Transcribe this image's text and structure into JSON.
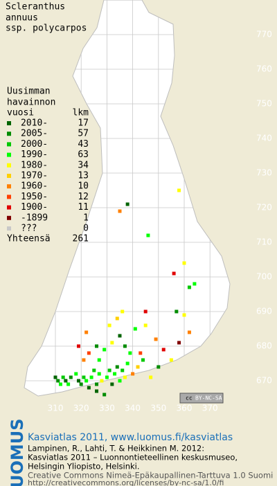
{
  "title": [
    "Scleranthus",
    "annuus",
    "ssp. polycarpos"
  ],
  "legend": {
    "heading": [
      "Uusimman",
      "havainnon"
    ],
    "col_period": "vuosi",
    "col_count": "lkm",
    "rows": [
      {
        "label": "2010-",
        "count": 17,
        "color": "#006400"
      },
      {
        "label": "2005-",
        "count": 57,
        "color": "#008c00"
      },
      {
        "label": "2000-",
        "count": 43,
        "color": "#00c800"
      },
      {
        "label": "1990-",
        "count": 63,
        "color": "#00ff00"
      },
      {
        "label": "1980-",
        "count": 34,
        "color": "#ffff00"
      },
      {
        "label": "1970-",
        "count": 13,
        "color": "#ffd000"
      },
      {
        "label": "1960-",
        "count": 10,
        "color": "#ff8000"
      },
      {
        "label": "1950-",
        "count": 12,
        "color": "#ff4000"
      },
      {
        "label": "1900-",
        "count": 11,
        "color": "#e00000"
      },
      {
        "label": "-1899",
        "count": 1,
        "color": "#800000"
      },
      {
        "label": "???",
        "count": 0,
        "color": "#c8c8c8"
      }
    ],
    "total_label": "Yhteensä",
    "total": 261
  },
  "grid": {
    "x_labels": [
      310,
      320,
      330,
      340,
      350,
      360,
      370
    ],
    "y_labels": [
      670,
      680,
      690,
      700,
      710,
      720,
      730,
      740,
      750,
      760,
      770
    ]
  },
  "observations": [
    [
      310,
      671,
      0
    ],
    [
      311,
      670,
      1
    ],
    [
      312,
      669,
      3
    ],
    [
      313,
      671,
      2
    ],
    [
      314,
      670,
      0
    ],
    [
      315,
      669,
      3
    ],
    [
      316,
      671,
      1
    ],
    [
      318,
      672,
      3
    ],
    [
      319,
      670,
      0
    ],
    [
      320,
      669,
      1
    ],
    [
      321,
      671,
      2
    ],
    [
      322,
      670,
      3
    ],
    [
      323,
      668,
      0
    ],
    [
      324,
      671,
      3
    ],
    [
      325,
      673,
      2
    ],
    [
      326,
      669,
      1
    ],
    [
      327,
      672,
      3
    ],
    [
      328,
      670,
      4
    ],
    [
      330,
      671,
      3
    ],
    [
      331,
      673,
      2
    ],
    [
      332,
      669,
      0
    ],
    [
      333,
      672,
      3
    ],
    [
      334,
      674,
      1
    ],
    [
      335,
      670,
      3
    ],
    [
      336,
      673,
      2
    ],
    [
      337,
      671,
      4
    ],
    [
      338,
      675,
      3
    ],
    [
      340,
      672,
      6
    ],
    [
      342,
      674,
      5
    ],
    [
      344,
      676,
      2
    ],
    [
      326,
      667,
      0
    ],
    [
      329,
      666,
      1
    ],
    [
      321,
      676,
      6
    ],
    [
      323,
      678,
      7
    ],
    [
      326,
      680,
      1
    ],
    [
      329,
      679,
      3
    ],
    [
      332,
      681,
      4
    ],
    [
      335,
      683,
      0
    ],
    [
      337,
      680,
      1
    ],
    [
      339,
      678,
      3
    ],
    [
      331,
      686,
      4
    ],
    [
      334,
      688,
      5
    ],
    [
      336,
      690,
      4
    ],
    [
      322,
      684,
      6
    ],
    [
      319,
      680,
      8
    ],
    [
      341,
      685,
      3
    ],
    [
      345,
      686,
      4
    ],
    [
      349,
      682,
      6
    ],
    [
      352,
      679,
      8
    ],
    [
      355,
      676,
      4
    ],
    [
      358,
      681,
      9
    ],
    [
      362,
      684,
      6
    ],
    [
      360,
      689,
      4
    ],
    [
      357,
      690,
      1
    ],
    [
      364,
      698,
      3
    ],
    [
      362,
      697,
      2
    ],
    [
      356,
      701,
      8
    ],
    [
      360,
      704,
      4
    ],
    [
      346,
      712,
      3
    ],
    [
      338,
      721,
      0
    ],
    [
      335,
      719,
      6
    ],
    [
      358,
      725,
      4
    ],
    [
      345,
      690,
      8
    ],
    [
      350,
      674,
      1
    ],
    [
      347,
      671,
      4
    ],
    [
      343,
      678,
      7
    ],
    [
      327,
      676,
      3
    ]
  ],
  "badge": {
    "cc": "cc",
    "text": "BY-NC-SA"
  },
  "footer": {
    "logo": "LUOMUS",
    "link": "Kasviatlas 2011, www.luomus.fi/kasviatlas",
    "citation": [
      "Lampinen, R., Lahti, T. & Heikkinen M. 2012:",
      "Kasviatlas 2011 – Luonnontieteellinen keskusmuseo,",
      "Helsingin Yliopisto, Helsinki."
    ],
    "license": [
      "Creative Commons Nimeä-Epäkaupallinen-Tarttuva 1.0 Suomi",
      "http://creativecommons.org/licenses/by-nc-sa/1.0/fi"
    ]
  }
}
